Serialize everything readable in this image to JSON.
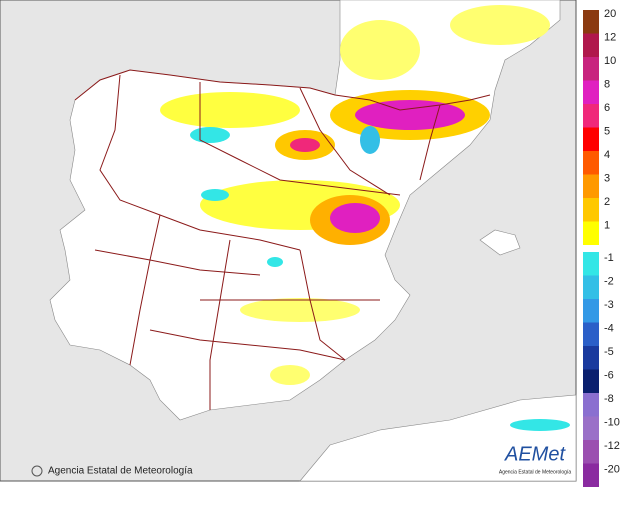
{
  "footer": {
    "credit": "Agencia Estatal de Meteorología"
  },
  "logo": {
    "name": "AEMet",
    "subtitle": "Agencia Estatal de Meteorología"
  },
  "legend": {
    "positive": [
      {
        "label": 20,
        "color": "#8b3a10"
      },
      {
        "label": 12,
        "color": "#b0184c"
      },
      {
        "label": 10,
        "color": "#c8237e"
      },
      {
        "label": 8,
        "color": "#e020c0"
      },
      {
        "label": 6,
        "color": "#f0287a"
      },
      {
        "label": 5,
        "color": "#ff0000"
      },
      {
        "label": 4,
        "color": "#ff5a00"
      },
      {
        "label": 3,
        "color": "#ff9900"
      },
      {
        "label": 2,
        "color": "#ffc800"
      },
      {
        "label": 1,
        "color": "#ffff00"
      }
    ],
    "negative": [
      {
        "label": -1,
        "color": "#33e6e6"
      },
      {
        "label": -2,
        "color": "#33bfe6"
      },
      {
        "label": -3,
        "color": "#3399e6"
      },
      {
        "label": -4,
        "color": "#2b5fc8"
      },
      {
        "label": -5,
        "color": "#1a3a9e"
      },
      {
        "label": -6,
        "color": "#0a1f6e"
      },
      {
        "label": -8,
        "color": "#8a6fd0"
      },
      {
        "label": -10,
        "color": "#9a70c8"
      },
      {
        "label": -12,
        "color": "#9b4fb0"
      },
      {
        "label": -20,
        "color": "#8a2ba0"
      }
    ]
  }
}
